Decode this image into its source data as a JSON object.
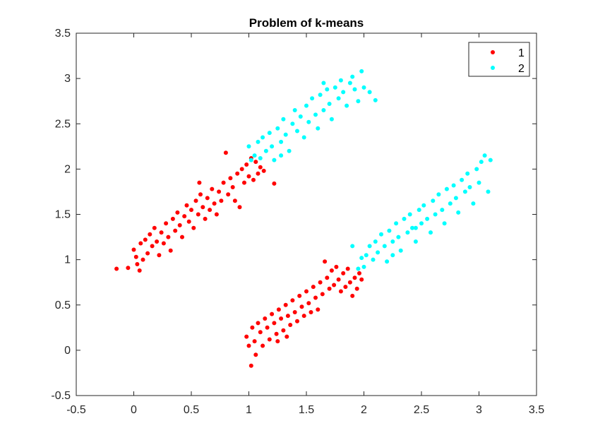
{
  "chart_data": {
    "type": "scatter",
    "title": "Problem of k-means",
    "xlabel": "",
    "ylabel": "",
    "xlim": [
      -0.5,
      3.5
    ],
    "ylim": [
      -0.5,
      3.5
    ],
    "xticks": [
      "-0.5",
      "0",
      "0.5",
      "1",
      "1.5",
      "2",
      "2.5",
      "3",
      "3.5"
    ],
    "yticks": [
      "-0.5",
      "0",
      "0.5",
      "1",
      "1.5",
      "2",
      "2.5",
      "3",
      "3.5"
    ],
    "grid": false,
    "legend_position": "top-right",
    "series": [
      {
        "name": "1",
        "color": "#ff0000",
        "points": [
          [
            -0.15,
            0.9
          ],
          [
            -0.05,
            0.91
          ],
          [
            0.0,
            1.11
          ],
          [
            0.03,
            0.95
          ],
          [
            0.05,
            0.88
          ],
          [
            0.02,
            1.03
          ],
          [
            0.08,
            1.0
          ],
          [
            0.06,
            1.18
          ],
          [
            0.1,
            1.22
          ],
          [
            0.12,
            1.07
          ],
          [
            0.14,
            1.28
          ],
          [
            0.16,
            1.15
          ],
          [
            0.18,
            1.35
          ],
          [
            0.2,
            1.2
          ],
          [
            0.22,
            1.05
          ],
          [
            0.24,
            1.3
          ],
          [
            0.26,
            1.18
          ],
          [
            0.28,
            1.4
          ],
          [
            0.3,
            1.25
          ],
          [
            0.32,
            1.1
          ],
          [
            0.34,
            1.45
          ],
          [
            0.36,
            1.32
          ],
          [
            0.38,
            1.52
          ],
          [
            0.4,
            1.38
          ],
          [
            0.42,
            1.25
          ],
          [
            0.44,
            1.48
          ],
          [
            0.46,
            1.6
          ],
          [
            0.48,
            1.42
          ],
          [
            0.5,
            1.55
          ],
          [
            0.52,
            1.35
          ],
          [
            0.54,
            1.65
          ],
          [
            0.56,
            1.5
          ],
          [
            0.58,
            1.72
          ],
          [
            0.6,
            1.58
          ],
          [
            0.62,
            1.45
          ],
          [
            0.64,
            1.68
          ],
          [
            0.66,
            1.55
          ],
          [
            0.68,
            1.78
          ],
          [
            0.7,
            1.62
          ],
          [
            0.72,
            1.5
          ],
          [
            0.74,
            1.75
          ],
          [
            0.76,
            1.65
          ],
          [
            0.78,
            1.85
          ],
          [
            0.8,
            2.18
          ],
          [
            0.82,
            1.72
          ],
          [
            0.84,
            1.9
          ],
          [
            0.86,
            1.8
          ],
          [
            0.88,
            1.65
          ],
          [
            0.9,
            1.95
          ],
          [
            0.92,
            1.58
          ],
          [
            0.94,
            2.0
          ],
          [
            0.96,
            1.85
          ],
          [
            0.98,
            2.05
          ],
          [
            1.0,
            1.92
          ],
          [
            1.02,
            2.12
          ],
          [
            1.04,
            1.88
          ],
          [
            1.06,
            2.08
          ],
          [
            1.08,
            1.95
          ],
          [
            1.1,
            2.02
          ],
          [
            1.13,
            1.98
          ],
          [
            1.22,
            1.84
          ],
          [
            0.57,
            1.85
          ],
          [
            0.98,
            0.15
          ],
          [
            1.0,
            0.05
          ],
          [
            1.02,
            -0.17
          ],
          [
            1.03,
            0.25
          ],
          [
            1.05,
            0.1
          ],
          [
            1.06,
            -0.05
          ],
          [
            1.08,
            0.3
          ],
          [
            1.1,
            0.2
          ],
          [
            1.12,
            0.05
          ],
          [
            1.14,
            0.35
          ],
          [
            1.16,
            0.25
          ],
          [
            1.18,
            0.12
          ],
          [
            1.2,
            0.4
          ],
          [
            1.22,
            0.3
          ],
          [
            1.24,
            0.18
          ],
          [
            1.26,
            0.45
          ],
          [
            1.28,
            0.35
          ],
          [
            1.3,
            0.22
          ],
          [
            1.32,
            0.5
          ],
          [
            1.34,
            0.38
          ],
          [
            1.36,
            0.28
          ],
          [
            1.38,
            0.55
          ],
          [
            1.4,
            0.42
          ],
          [
            1.42,
            0.32
          ],
          [
            1.44,
            0.6
          ],
          [
            1.46,
            0.48
          ],
          [
            1.48,
            0.38
          ],
          [
            1.5,
            0.65
          ],
          [
            1.52,
            0.52
          ],
          [
            1.54,
            0.42
          ],
          [
            1.56,
            0.7
          ],
          [
            1.58,
            0.58
          ],
          [
            1.6,
            0.45
          ],
          [
            1.62,
            0.75
          ],
          [
            1.64,
            0.62
          ],
          [
            1.66,
            0.98
          ],
          [
            1.68,
            0.8
          ],
          [
            1.7,
            0.68
          ],
          [
            1.72,
            0.88
          ],
          [
            1.74,
            0.72
          ],
          [
            1.76,
            0.92
          ],
          [
            1.78,
            0.78
          ],
          [
            1.8,
            0.65
          ],
          [
            1.82,
            0.85
          ],
          [
            1.84,
            0.7
          ],
          [
            1.86,
            0.9
          ],
          [
            1.88,
            0.75
          ],
          [
            1.9,
            0.6
          ],
          [
            1.92,
            0.8
          ],
          [
            1.94,
            0.68
          ],
          [
            1.96,
            0.85
          ],
          [
            1.98,
            0.78
          ],
          [
            1.25,
            0.1
          ],
          [
            1.33,
            0.15
          ]
        ]
      },
      {
        "name": "2",
        "color": "#00ffff",
        "points": [
          [
            1.0,
            2.25
          ],
          [
            1.02,
            2.1
          ],
          [
            1.05,
            2.15
          ],
          [
            1.08,
            2.3
          ],
          [
            1.1,
            2.12
          ],
          [
            1.12,
            2.35
          ],
          [
            1.15,
            2.2
          ],
          [
            1.18,
            2.4
          ],
          [
            1.2,
            2.25
          ],
          [
            1.22,
            2.1
          ],
          [
            1.25,
            2.45
          ],
          [
            1.28,
            2.3
          ],
          [
            1.3,
            2.55
          ],
          [
            1.32,
            2.38
          ],
          [
            1.35,
            2.2
          ],
          [
            1.38,
            2.5
          ],
          [
            1.4,
            2.65
          ],
          [
            1.42,
            2.42
          ],
          [
            1.45,
            2.58
          ],
          [
            1.48,
            2.35
          ],
          [
            1.5,
            2.7
          ],
          [
            1.52,
            2.52
          ],
          [
            1.55,
            2.78
          ],
          [
            1.58,
            2.6
          ],
          [
            1.6,
            2.45
          ],
          [
            1.62,
            2.82
          ],
          [
            1.65,
            2.65
          ],
          [
            1.68,
            2.88
          ],
          [
            1.7,
            2.72
          ],
          [
            1.72,
            2.55
          ],
          [
            1.75,
            2.9
          ],
          [
            1.78,
            2.78
          ],
          [
            1.8,
            2.98
          ],
          [
            1.82,
            2.85
          ],
          [
            1.85,
            2.7
          ],
          [
            1.88,
            2.95
          ],
          [
            1.9,
            3.02
          ],
          [
            1.92,
            2.88
          ],
          [
            1.95,
            2.75
          ],
          [
            1.98,
            3.08
          ],
          [
            2.0,
            2.9
          ],
          [
            2.05,
            2.85
          ],
          [
            2.1,
            2.76
          ],
          [
            1.65,
            2.95
          ],
          [
            1.28,
            2.15
          ],
          [
            1.95,
            0.9
          ],
          [
            1.98,
            1.02
          ],
          [
            2.0,
            0.92
          ],
          [
            2.02,
            1.05
          ],
          [
            2.05,
            1.15
          ],
          [
            2.08,
            1.0
          ],
          [
            2.1,
            1.2
          ],
          [
            2.12,
            1.08
          ],
          [
            2.15,
            1.28
          ],
          [
            2.18,
            1.15
          ],
          [
            2.2,
            0.98
          ],
          [
            2.22,
            1.32
          ],
          [
            2.25,
            1.2
          ],
          [
            2.28,
            1.4
          ],
          [
            2.3,
            1.25
          ],
          [
            2.32,
            1.1
          ],
          [
            2.35,
            1.45
          ],
          [
            2.38,
            1.3
          ],
          [
            2.4,
            1.5
          ],
          [
            2.42,
            1.35
          ],
          [
            2.45,
            1.2
          ],
          [
            2.48,
            1.55
          ],
          [
            2.5,
            1.4
          ],
          [
            2.52,
            1.6
          ],
          [
            2.55,
            1.45
          ],
          [
            2.58,
            1.3
          ],
          [
            2.6,
            1.65
          ],
          [
            2.62,
            1.5
          ],
          [
            2.65,
            1.72
          ],
          [
            2.68,
            1.55
          ],
          [
            2.7,
            1.4
          ],
          [
            2.72,
            1.78
          ],
          [
            2.75,
            1.62
          ],
          [
            2.78,
            1.82
          ],
          [
            2.8,
            1.68
          ],
          [
            2.82,
            1.52
          ],
          [
            2.85,
            1.88
          ],
          [
            2.88,
            1.75
          ],
          [
            2.9,
            1.95
          ],
          [
            2.92,
            1.8
          ],
          [
            2.95,
            1.62
          ],
          [
            2.98,
            2.0
          ],
          [
            3.0,
            1.85
          ],
          [
            3.02,
            2.08
          ],
          [
            3.05,
            2.15
          ],
          [
            3.08,
            1.75
          ],
          [
            3.1,
            2.1
          ],
          [
            1.9,
            1.15
          ],
          [
            2.25,
            1.05
          ],
          [
            2.45,
            1.35
          ]
        ]
      }
    ]
  }
}
